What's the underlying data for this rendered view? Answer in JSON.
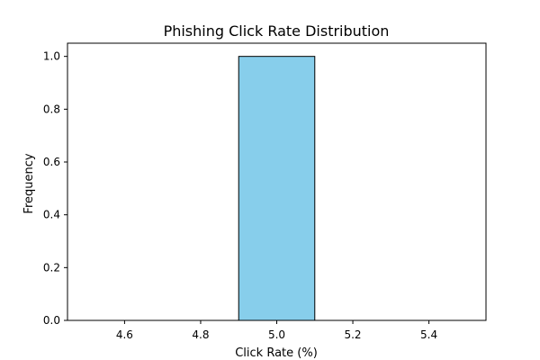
{
  "chart_data": {
    "type": "bar",
    "title": "Phishing Click Rate Distribution",
    "xlabel": "Click Rate (%)",
    "ylabel": "Frequency",
    "xlim": [
      4.45,
      5.55
    ],
    "ylim": [
      0,
      1.05
    ],
    "bins": [
      {
        "x_start": 4.5,
        "x_end": 4.7,
        "value": 0
      },
      {
        "x_start": 4.7,
        "x_end": 4.9,
        "value": 0
      },
      {
        "x_start": 4.9,
        "x_end": 5.1,
        "value": 1
      },
      {
        "x_start": 5.1,
        "x_end": 5.3,
        "value": 0
      },
      {
        "x_start": 5.3,
        "x_end": 5.5,
        "value": 0
      }
    ],
    "x_ticks": [
      "4.6",
      "4.8",
      "5.0",
      "5.2",
      "5.4"
    ],
    "y_ticks": [
      "0.0",
      "0.2",
      "0.4",
      "0.6",
      "0.8",
      "1.0"
    ],
    "bar_color": "#87CEEB",
    "edge_color": "#000000",
    "grid": false,
    "legend": "none"
  }
}
